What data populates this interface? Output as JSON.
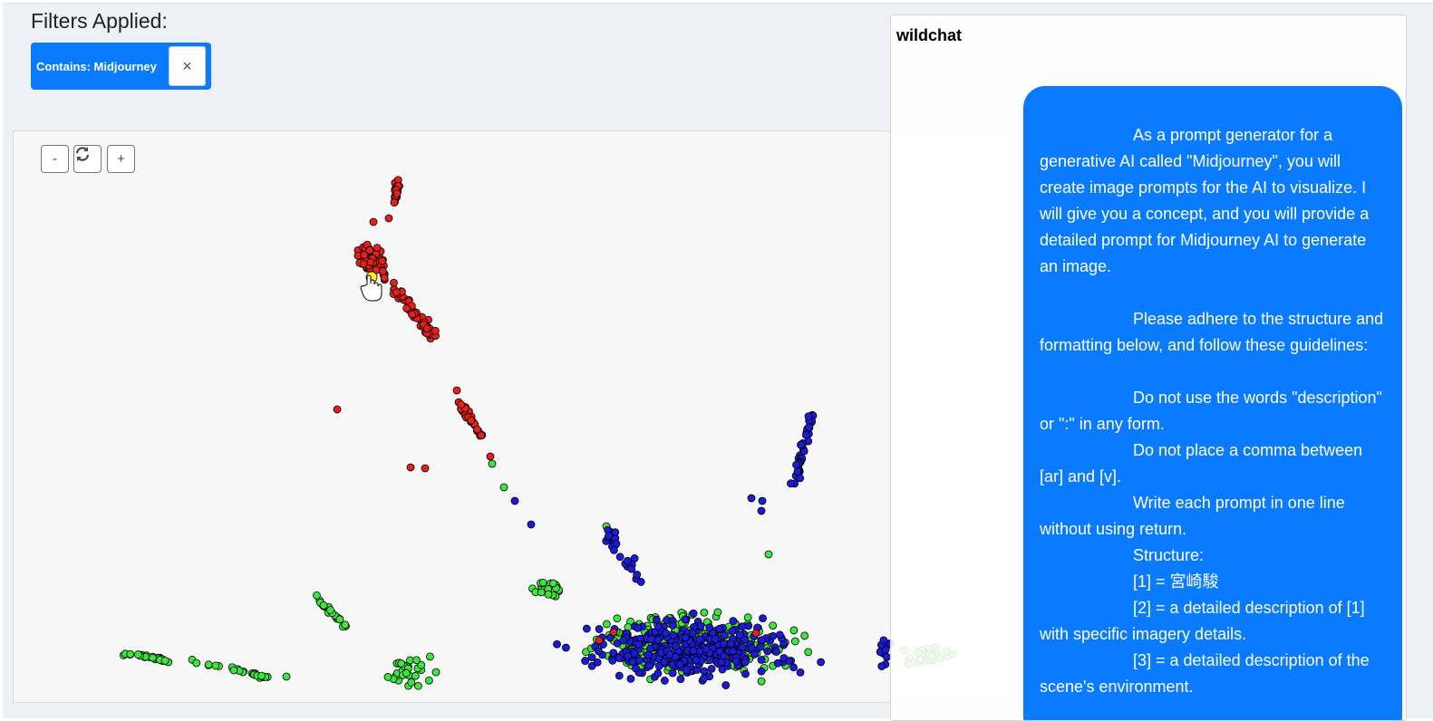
{
  "filters": {
    "title": "Filters Applied:",
    "chips": [
      {
        "label": "Contains: Midjourney",
        "remove_label": "×"
      }
    ]
  },
  "chart_controls": {
    "zoom_out": "-",
    "reset_icon": "refresh-icon",
    "zoom_in": "+"
  },
  "chart_data": {
    "type": "scatter",
    "colors": {
      "red": "#e8201c",
      "green": "#3ce63c",
      "blue": "#1c1cd8",
      "highlight": "#ffee22",
      "stroke": "#000000"
    },
    "grid": false,
    "axes": false
  },
  "panel": {
    "title": "wildchat",
    "message": [
      {
        "text": "As a prompt generator for a generative AI called \"Midjourney\", you will create image prompts for the AI to visualize. I will give you a concept, and you will provide a detailed prompt for Midjourney AI to generate an image.",
        "style": "ind"
      },
      {
        "text": "",
        "style": ""
      },
      {
        "text": "Please adhere to the structure and formatting below, and follow these guidelines:",
        "style": "ind"
      },
      {
        "text": "",
        "style": ""
      },
      {
        "text": "Do not use the words \"description\" or \":\" in any form.",
        "style": "ind"
      },
      {
        "text": "Do not place a comma between [ar] and [v].",
        "style": "ind"
      },
      {
        "text": "Write each prompt in one line without using return.",
        "style": "ind"
      },
      {
        "text": "Structure:",
        "style": "ind"
      },
      {
        "text": "[1] = 宮崎駿",
        "style": "ind"
      },
      {
        "text": "[2] = a detailed description of [1] with specific imagery details.",
        "style": "ind"
      },
      {
        "text": "[3] = a detailed description of the scene's environment.",
        "style": "ind"
      }
    ]
  }
}
